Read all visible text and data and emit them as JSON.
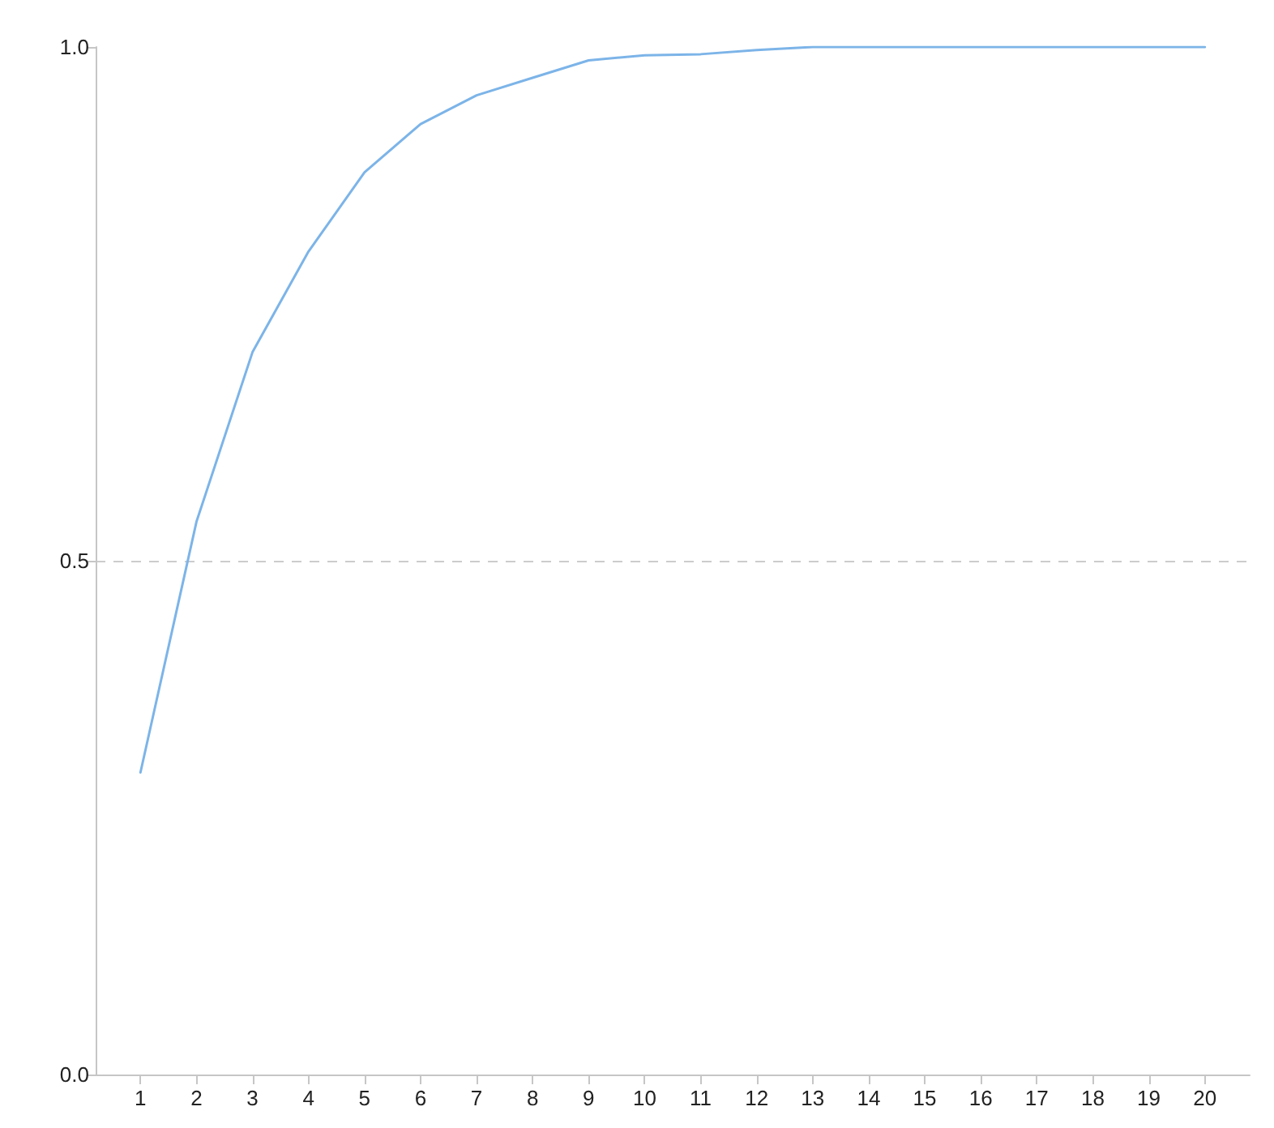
{
  "chart_data": {
    "type": "line",
    "x": [
      1,
      2,
      3,
      4,
      5,
      6,
      7,
      8,
      9,
      10,
      11,
      12,
      13,
      14,
      15,
      16,
      17,
      18,
      19,
      20
    ],
    "series": [
      {
        "color": "#7cb4e8",
        "values": [
          0.294,
          0.538,
          0.703,
          0.801,
          0.878,
          0.925,
          0.953,
          0.97,
          0.987,
          0.992,
          0.993,
          0.997,
          1,
          1,
          1,
          1,
          1,
          1,
          1,
          1
        ]
      }
    ],
    "xlim": [
      0.2,
      20.8
    ],
    "xticks": [
      1,
      2,
      3,
      4,
      5,
      6,
      7,
      8,
      9,
      10,
      11,
      12,
      13,
      14,
      15,
      16,
      17,
      18,
      19,
      20
    ],
    "ylim": [
      0,
      1
    ],
    "yticks": [
      {
        "value": 0,
        "label": "0.0"
      },
      {
        "value": 0.5,
        "label": "0.5"
      },
      {
        "value": 1,
        "label": "1.0"
      }
    ],
    "grid": "y",
    "marker": "none",
    "line_style": "solid"
  }
}
